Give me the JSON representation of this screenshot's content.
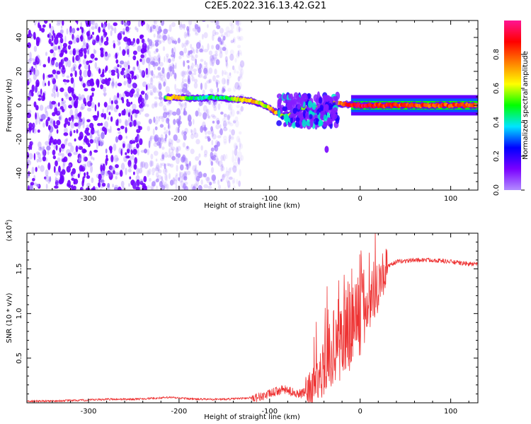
{
  "title": "C2E5.2022.316.13.42.G21",
  "chart_data": [
    {
      "type": "heatmap",
      "xlabel": "Height of straight line (km)",
      "ylabel": "Frequency (Hz)",
      "xlim": [
        -368,
        130
      ],
      "ylim": [
        -50,
        50
      ],
      "x_ticks": [
        -300,
        -200,
        -100,
        0,
        100
      ],
      "y_ticks": [
        -40,
        -20,
        0,
        20,
        40
      ],
      "colorbar": {
        "label": "Normalized spectral amplitude",
        "range": [
          0,
          1
        ],
        "ticks": [
          0.0,
          0.2,
          0.4,
          0.6,
          0.8
        ],
        "colormap": [
          "#b28cff",
          "#7a00ff",
          "#0000ff",
          "#00e5ff",
          "#00ff00",
          "#ffff00",
          "#ff8000",
          "#ff0000",
          "#ff1493"
        ]
      },
      "ridge": [
        {
          "x": -215,
          "y": 4.5,
          "a": 0.5
        },
        {
          "x": -205,
          "y": 4.8,
          "a": 0.75
        },
        {
          "x": -195,
          "y": 4.5,
          "a": 0.6
        },
        {
          "x": -185,
          "y": 4.0,
          "a": 0.4
        },
        {
          "x": -165,
          "y": 4.5,
          "a": 0.45
        },
        {
          "x": -150,
          "y": 4.2,
          "a": 0.45
        },
        {
          "x": -135,
          "y": 3.5,
          "a": 0.6
        },
        {
          "x": -120,
          "y": 2.5,
          "a": 0.7
        },
        {
          "x": -105,
          "y": 0.0,
          "a": 0.55
        },
        {
          "x": -95,
          "y": -3.5,
          "a": 0.75
        },
        {
          "x": -85,
          "y": -6.0,
          "a": 0.6
        },
        {
          "x": -75,
          "y": -5.5,
          "a": 0.55
        },
        {
          "x": -65,
          "y": -1.5,
          "a": 0.5
        },
        {
          "x": -55,
          "y": -2.5,
          "a": 0.6
        },
        {
          "x": -45,
          "y": -1.0,
          "a": 0.6
        },
        {
          "x": -35,
          "y": 1.0,
          "a": 0.6
        },
        {
          "x": -25,
          "y": 1.0,
          "a": 0.75
        },
        {
          "x": -15,
          "y": 0.5,
          "a": 0.85
        },
        {
          "x": 0,
          "y": 0.0,
          "a": 0.9
        },
        {
          "x": 20,
          "y": 0.0,
          "a": 0.85
        },
        {
          "x": 60,
          "y": 0.0,
          "a": 0.8
        },
        {
          "x": 100,
          "y": 0.0,
          "a": 0.8
        },
        {
          "x": 128,
          "y": 0.0,
          "a": 0.8
        }
      ],
      "noise_region": {
        "x_from": -368,
        "x_to": -130,
        "dense_to": -235
      },
      "blob": {
        "x_from": -90,
        "x_to": -25,
        "y_from": -12,
        "y_to": 6,
        "outlier": {
          "x": -37,
          "y": -26
        }
      }
    },
    {
      "type": "line",
      "xlabel": "Height of straight line (km)",
      "ylabel": "SNR (10 * v/v)",
      "scale_note": "(x10",
      "scale_exp": "4",
      "scale_close": ")",
      "xlim": [
        -368,
        130
      ],
      "ylim": [
        0,
        1.9
      ],
      "x_ticks": [
        -300,
        -200,
        -100,
        0,
        100
      ],
      "y_ticks": [
        0.5,
        1.0,
        1.5
      ],
      "y_tick_labels": [
        "0.5",
        "1.0",
        "1.5"
      ],
      "series": [
        {
          "color": "#ee3333",
          "x": [
            -368,
            -340,
            -300,
            -280,
            -250,
            -230,
            -210,
            -180,
            -150,
            -130,
            -115,
            -105,
            -95,
            -85,
            -75,
            -65,
            -55,
            -50,
            -45,
            -40,
            -35,
            -30,
            -25,
            -20,
            -15,
            -10,
            -5,
            0,
            5,
            10,
            15,
            20,
            25,
            30,
            40,
            60,
            80,
            100,
            115,
            130
          ],
          "y": [
            0.02,
            0.02,
            0.03,
            0.04,
            0.04,
            0.05,
            0.06,
            0.04,
            0.04,
            0.05,
            0.06,
            0.08,
            0.12,
            0.15,
            0.12,
            0.1,
            0.15,
            0.2,
            0.3,
            0.4,
            0.5,
            0.62,
            0.7,
            0.72,
            0.8,
            0.9,
            0.95,
            1.0,
            1.05,
            1.15,
            1.25,
            1.35,
            1.45,
            1.52,
            1.58,
            1.6,
            1.6,
            1.58,
            1.56,
            1.55
          ]
        }
      ]
    }
  ]
}
